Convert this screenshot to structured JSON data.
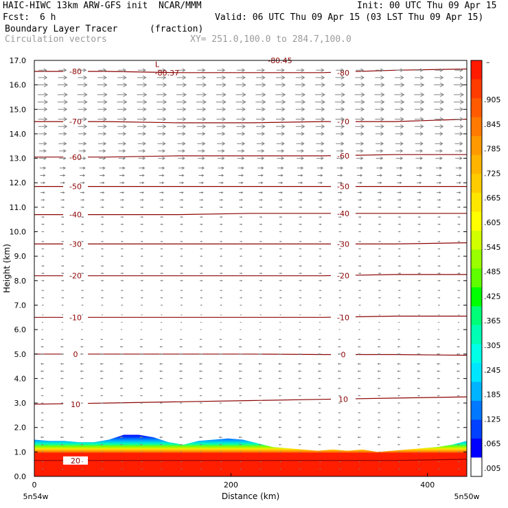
{
  "header": {
    "model_title": "HAIC-HIWC 13km ARW-GFS init  NCAR/MMM",
    "init": "Init: 00 UTC Thu 09 Apr 15",
    "fcst_label": "Fcst:",
    "fcst_value": "6 h",
    "valid": "Valid: 06 UTC Thu 09 Apr 15 (03 LST Thu 09 Apr 15)",
    "field_name": "Boundary Layer Tracer",
    "field_units": "(fraction)",
    "vector_name": "Circulation vectors",
    "xy_range": "XY= 251.0,100.0 to 284.7,100.0"
  },
  "chart_data": {
    "type": "heatmap",
    "title": "Boundary Layer Tracer",
    "xlabel": "Distance (km)",
    "ylabel": "Height (km)",
    "xlim": [
      0,
      440
    ],
    "ylim": [
      0,
      17
    ],
    "x_ticks": [
      "0",
      "200",
      "400"
    ],
    "x_tick_values": [
      0,
      200,
      400
    ],
    "x_end_labels": [
      "5n54w",
      "5n50w"
    ],
    "y_ticks": [
      "0.0",
      "1.0",
      "2.0",
      "3.0",
      "4.0",
      "5.0",
      "6.0",
      "7.0",
      "8.0",
      "9.0",
      "10.0",
      "11.0",
      "12.0",
      "13.0",
      "14.0",
      "15.0",
      "16.0",
      "17.0"
    ],
    "colorbar": {
      "top_label": "–",
      "labels": [
        ".905",
        ".845",
        ".785",
        ".725",
        ".665",
        ".605",
        ".545",
        ".485",
        ".425",
        ".365",
        ".305",
        ".245",
        ".185",
        ".125",
        ".065",
        ".005"
      ],
      "colors": [
        "#ff1a00",
        "#ff3c00",
        "#ff5a00",
        "#ff7a00",
        "#ff9900",
        "#ffb400",
        "#ffcc00",
        "#ffe600",
        "#ffff00",
        "#d2ff00",
        "#9aff00",
        "#5fff00",
        "#00ff00",
        "#00ff78",
        "#00ffb4",
        "#00ffe6",
        "#00e6ff",
        "#00b4ff",
        "#0078ff",
        "#0040ff",
        "#0000ff",
        "#ffffff"
      ]
    },
    "tracer_top_km": [
      1.5,
      1.45,
      1.45,
      1.4,
      1.4,
      1.5,
      1.7,
      1.7,
      1.6,
      1.4,
      1.3,
      1.45,
      1.5,
      1.55,
      1.5,
      1.35,
      1.2,
      1.15,
      1.1,
      1.05,
      1.1,
      1.05,
      1.1,
      1.0,
      1.05,
      1.1,
      1.15,
      1.2,
      1.3,
      1.45
    ],
    "temperature_contours": [
      {
        "label": "-80",
        "levels_km": [
          16.55,
          16.55,
          16.5,
          16.5,
          16.5,
          16.6,
          16.65
        ]
      },
      {
        "label": "-70",
        "levels_km": [
          14.5,
          14.5,
          14.45,
          14.45,
          14.5,
          14.5,
          14.6
        ]
      },
      {
        "label": "-60",
        "levels_km": [
          13.05,
          13.05,
          13.1,
          13.1,
          13.1,
          13.15,
          13.15
        ]
      },
      {
        "label": "-50",
        "levels_km": [
          11.85,
          11.85,
          11.85,
          11.85,
          11.85,
          11.85,
          11.85
        ]
      },
      {
        "label": "-40",
        "levels_km": [
          10.7,
          10.7,
          10.7,
          10.75,
          10.75,
          10.75,
          10.75
        ]
      },
      {
        "label": "-30",
        "levels_km": [
          9.5,
          9.5,
          9.5,
          9.5,
          9.5,
          9.5,
          9.55
        ]
      },
      {
        "label": "-20",
        "levels_km": [
          8.2,
          8.2,
          8.2,
          8.2,
          8.2,
          8.25,
          8.25
        ]
      },
      {
        "label": "-10",
        "levels_km": [
          6.5,
          6.5,
          6.5,
          6.5,
          6.5,
          6.55,
          6.55
        ]
      },
      {
        "label": "0",
        "levels_km": [
          5.0,
          5.0,
          5.0,
          5.0,
          4.98,
          4.98,
          4.95
        ]
      },
      {
        "label": "10",
        "levels_km": [
          2.95,
          3.0,
          3.05,
          3.1,
          3.15,
          3.2,
          3.25
        ]
      },
      {
        "label": "20",
        "levels_km": [
          0.65,
          0.65,
          0.65,
          0.65,
          0.65,
          0.65,
          0.7
        ]
      }
    ],
    "extra_annotations": [
      {
        "text": "L",
        "x_km": 125,
        "y_km": 16.85
      },
      {
        "text": "-80.37",
        "x_km": 135,
        "y_km": 16.5
      },
      {
        "text": "-80.45",
        "x_km": 250,
        "y_km": 17.0
      }
    ],
    "wind_rows_km": [
      16.6,
      16.3,
      16.0,
      15.6,
      15.3,
      15.0,
      14.6,
      14.3,
      14.0,
      13.6,
      13.3,
      13.0,
      12.6,
      12.3,
      12.0,
      11.6,
      11.3,
      11.0,
      10.6,
      10.3,
      10.0,
      9.6,
      9.3,
      9.0,
      8.6,
      8.3,
      8.0,
      7.6,
      7.3,
      7.0,
      6.6,
      6.3,
      6.0,
      5.6,
      5.3,
      5.0,
      4.6,
      4.3,
      4.0,
      3.6,
      3.3,
      3.0,
      2.6,
      2.3,
      2.0,
      1.6,
      1.3,
      1.0,
      0.6,
      0.3
    ],
    "wind_u_by_row": [
      0.8,
      0.9,
      1.0,
      1.0,
      1.0,
      0.9,
      0.9,
      0.9,
      0.8,
      0.8,
      0.7,
      0.7,
      0.6,
      0.5,
      0.45,
      0.4,
      0.35,
      0.3,
      0.25,
      0.25,
      0.2,
      0.2,
      0.2,
      0.2,
      0.25,
      0.25,
      0.25,
      0.2,
      0.2,
      0.15,
      0.1,
      0.0,
      -0.1,
      -0.2,
      -0.25,
      -0.3,
      -0.3,
      -0.3,
      -0.25,
      -0.25,
      -0.2,
      -0.2,
      -0.2,
      -0.2,
      -0.25,
      -0.3,
      -0.2,
      0.05,
      0.1,
      0.1
    ]
  }
}
